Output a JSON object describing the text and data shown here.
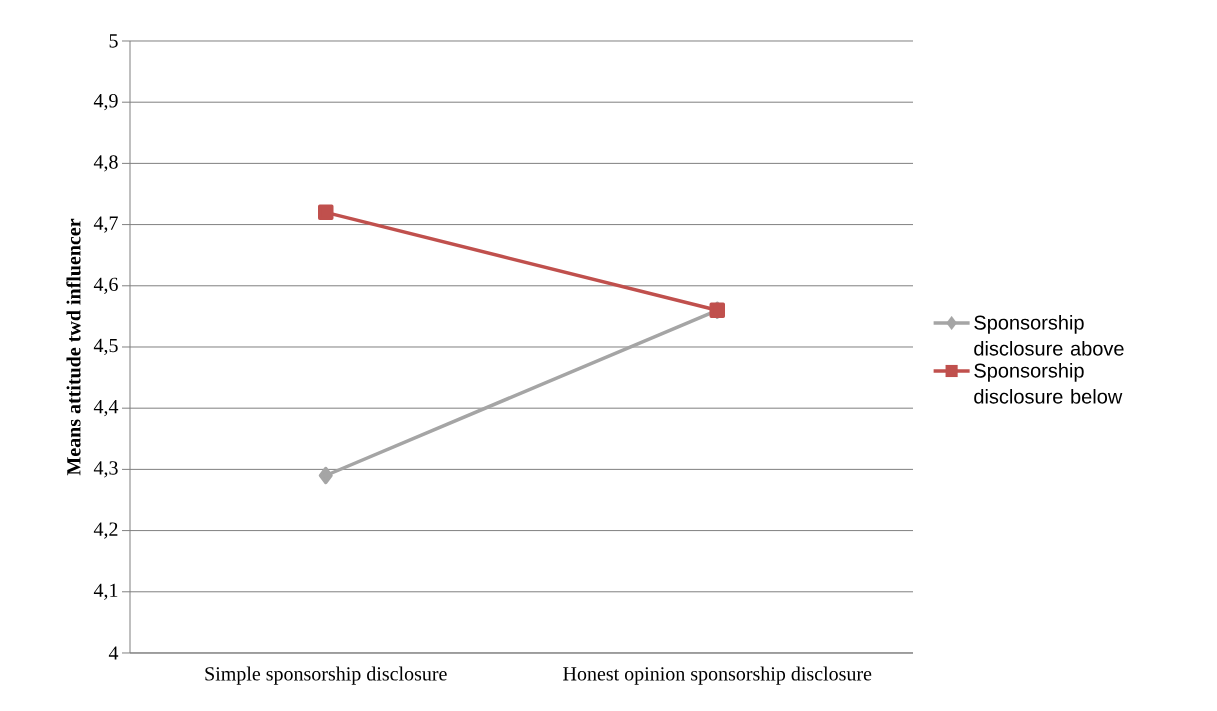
{
  "chart_data": {
    "type": "line",
    "ylabel": "Means attitude twd influencer",
    "categories": [
      "Simple sponsorship disclosure",
      "Honest opinion sponsorship disclosure"
    ],
    "series": [
      {
        "name": "Sponsorship disclosure above",
        "color": "#a5a5a5",
        "marker": "diamond",
        "values": [
          4.29,
          4.56
        ]
      },
      {
        "name": "Sponsorship disclosure below",
        "color": "#c0504d",
        "marker": "square",
        "values": [
          4.72,
          4.56
        ]
      }
    ],
    "ylim": [
      4,
      5
    ],
    "yticks": [
      4,
      {
        "value": 4.1,
        "label": "4,1"
      },
      {
        "value": 4.2,
        "label": "4,2"
      },
      {
        "value": 4.3,
        "label": "4,3"
      },
      {
        "value": 4.4,
        "label": "4,4"
      },
      {
        "value": 4.5,
        "label": "4,5"
      },
      {
        "value": 4.6,
        "label": "4,6"
      },
      {
        "value": 4.7,
        "label": "4,7"
      },
      {
        "value": 4.8,
        "label": "4,8"
      },
      {
        "value": 4.9,
        "label": "4,9"
      },
      5
    ],
    "grid": "y",
    "legend": "right",
    "line_style": "solid"
  }
}
